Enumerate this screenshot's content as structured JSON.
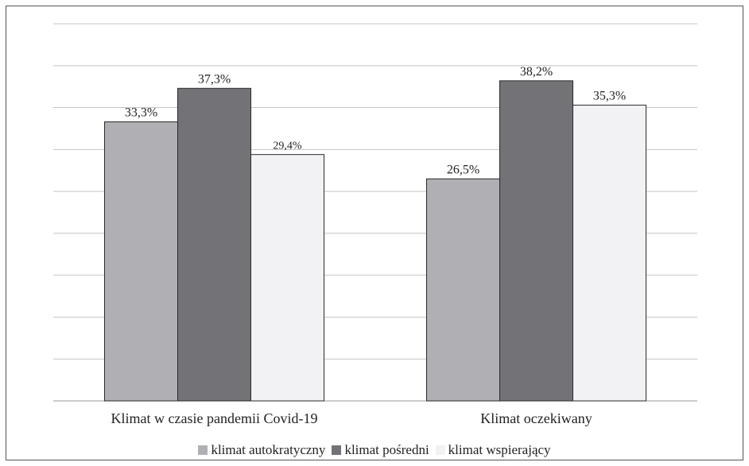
{
  "chart_data": {
    "type": "bar",
    "categories": [
      "Klimat w czasie pandemii Covid-19",
      "Klimat oczekiwany"
    ],
    "series": [
      {
        "name": "klimat autokratyczny",
        "values": [
          33.3,
          26.5
        ],
        "labels": [
          "33,3%",
          "26,5%"
        ],
        "color": "#b0b0b4"
      },
      {
        "name": "klimat pośredni",
        "values": [
          37.3,
          38.2
        ],
        "labels": [
          "37,3%",
          "38,2%"
        ],
        "color": "#737377"
      },
      {
        "name": "klimat wspierający",
        "values": [
          29.4,
          35.3
        ],
        "labels": [
          "29,4%",
          "35,3%"
        ],
        "color": "#f2f2f4"
      }
    ],
    "ylim": [
      0,
      45
    ],
    "ytick_step": 5,
    "y_tick_labels_shown": false,
    "grid": true,
    "legend_position": "bottom"
  }
}
